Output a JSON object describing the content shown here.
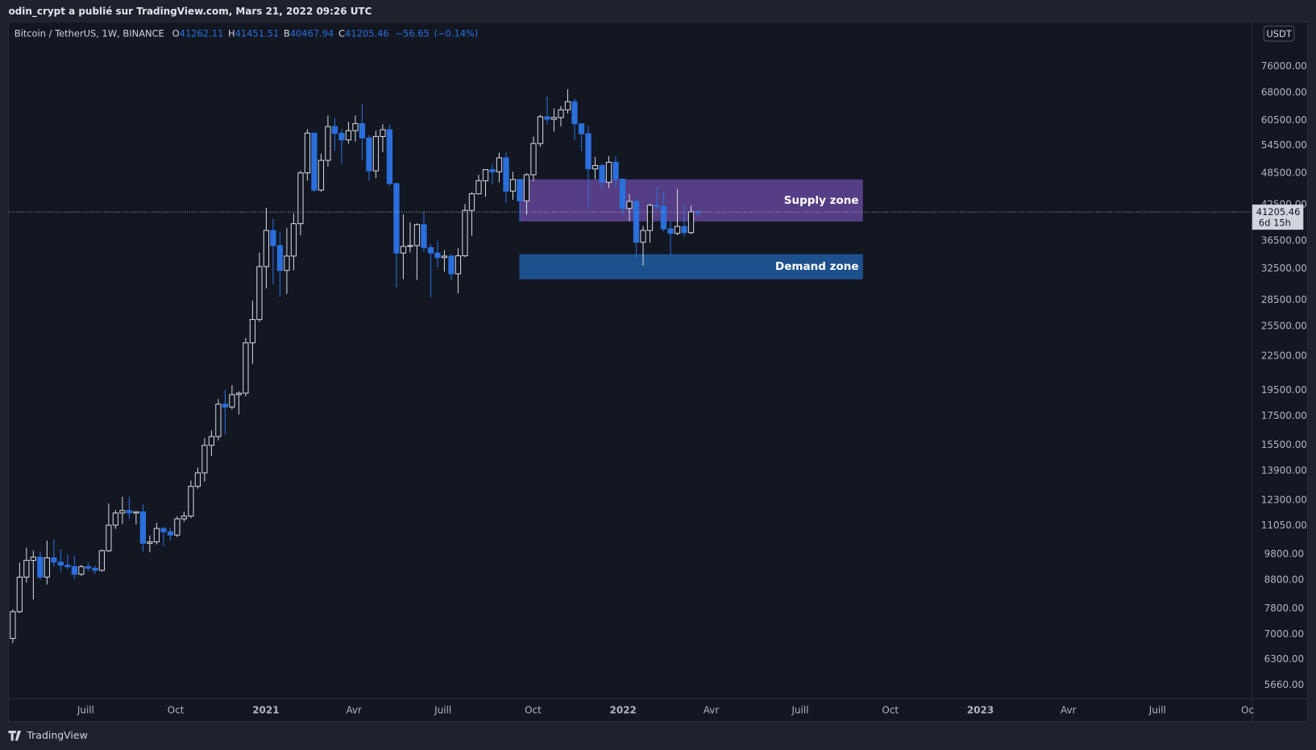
{
  "header": {
    "text": "odin_crypt a publié sur TradingView.com, Mars 21, 2022 09:26 UTC"
  },
  "chart_data": {
    "type": "candlestick",
    "title": "Bitcoin / TetherUS, 1W, BINANCE",
    "legend_labels": {
      "open": "O",
      "high": "H",
      "low": "B",
      "close": "C"
    },
    "change": {
      "value": -56.65,
      "label": "−56.65"
    },
    "change_pct": {
      "value": -0.14,
      "label": "(−0.14%)"
    },
    "currency": "USDT",
    "countdown": "6d 15h",
    "up_color": "#d1d4dc",
    "down_color": "#2a6fdb",
    "log_scale": true,
    "grid": false,
    "x": [
      "2020-04-20",
      "2020-04-27",
      "2020-05-04",
      "2020-05-11",
      "2020-05-18",
      "2020-05-25",
      "2020-06-01",
      "2020-06-08",
      "2020-06-15",
      "2020-06-22",
      "2020-06-29",
      "2020-07-06",
      "2020-07-13",
      "2020-07-20",
      "2020-07-27",
      "2020-08-03",
      "2020-08-10",
      "2020-08-17",
      "2020-08-24",
      "2020-08-31",
      "2020-09-07",
      "2020-09-14",
      "2020-09-21",
      "2020-09-28",
      "2020-10-05",
      "2020-10-12",
      "2020-10-19",
      "2020-10-26",
      "2020-11-02",
      "2020-11-09",
      "2020-11-16",
      "2020-11-23",
      "2020-11-30",
      "2020-12-07",
      "2020-12-14",
      "2020-12-21",
      "2020-12-28",
      "2021-01-04",
      "2021-01-11",
      "2021-01-18",
      "2021-01-25",
      "2021-02-01",
      "2021-02-08",
      "2021-02-15",
      "2021-02-22",
      "2021-03-01",
      "2021-03-08",
      "2021-03-15",
      "2021-03-22",
      "2021-03-29",
      "2021-04-05",
      "2021-04-12",
      "2021-04-19",
      "2021-04-26",
      "2021-05-03",
      "2021-05-10",
      "2021-05-17",
      "2021-05-24",
      "2021-05-31",
      "2021-06-07",
      "2021-06-14",
      "2021-06-21",
      "2021-06-28",
      "2021-07-05",
      "2021-07-12",
      "2021-07-19",
      "2021-07-26",
      "2021-08-02",
      "2021-08-09",
      "2021-08-16",
      "2021-08-23",
      "2021-08-30",
      "2021-09-06",
      "2021-09-13",
      "2021-09-20",
      "2021-09-27",
      "2021-10-04",
      "2021-10-11",
      "2021-10-18",
      "2021-10-25",
      "2021-11-01",
      "2021-11-08",
      "2021-11-15",
      "2021-11-22",
      "2021-11-29",
      "2021-12-06",
      "2021-12-13",
      "2021-12-20",
      "2021-12-27",
      "2022-01-03",
      "2022-01-10",
      "2022-01-17",
      "2022-01-24",
      "2022-01-31",
      "2022-02-07",
      "2022-02-14",
      "2022-02-21",
      "2022-02-28",
      "2022-03-07",
      "2022-03-14",
      "2022-03-21"
    ],
    "open": [
      6880,
      7700,
      8900,
      9550,
      9680,
      8900,
      9650,
      9480,
      9360,
      9300,
      9010,
      9300,
      9240,
      9160,
      9940,
      11070,
      11650,
      11770,
      11650,
      11710,
      10260,
      10320,
      10920,
      10770,
      10620,
      11370,
      11500,
      13030,
      13790,
      15480,
      16060,
      18400,
      18180,
      19150,
      19270,
      23800,
      26250,
      32780,
      38150,
      35800,
      32250,
      34260,
      39250,
      48580,
      57400,
      45200,
      51200,
      59000,
      57350,
      55800,
      58000,
      59750,
      56250,
      49000,
      56600,
      58240,
      46450,
      34700,
      35680,
      35800,
      39100,
      35500,
      34700,
      34050,
      34250,
      31800,
      34300,
      41500,
      44500,
      47000,
      49250,
      48800,
      51750,
      45000,
      47250,
      43200,
      48200,
      54950,
      61500,
      60850,
      61300,
      63300,
      65500,
      59700,
      57270,
      49400,
      50100,
      46700,
      50800,
      47300,
      41850,
      43100,
      36300,
      38150,
      42400,
      42200,
      38400,
      37700,
      38800,
      37800,
      41262.11
    ],
    "high": [
      7770,
      9460,
      10070,
      9950,
      9900,
      10380,
      10430,
      10000,
      9800,
      9750,
      9370,
      9460,
      9350,
      10000,
      12120,
      11800,
      12470,
      12470,
      11700,
      12080,
      10600,
      11180,
      10990,
      10950,
      11490,
      11720,
      13350,
      14090,
      15960,
      16480,
      18800,
      19500,
      19920,
      19420,
      24300,
      28400,
      34780,
      41950,
      40100,
      37850,
      38530,
      40950,
      49000,
      58350,
      57500,
      52650,
      61800,
      61200,
      58400,
      60200,
      61800,
      64850,
      57000,
      58000,
      59600,
      59500,
      46600,
      40800,
      39500,
      39300,
      41300,
      36000,
      36600,
      35100,
      34600,
      35400,
      42600,
      44800,
      48200,
      49300,
      50500,
      52900,
      52950,
      48800,
      47300,
      48500,
      56600,
      62000,
      67000,
      63700,
      64300,
      69000,
      66400,
      59800,
      59200,
      51950,
      50500,
      52100,
      52100,
      47550,
      44450,
      43500,
      38900,
      42700,
      45850,
      44750,
      39800,
      45400,
      42600,
      42300,
      41451.51
    ],
    "low": [
      6750,
      7650,
      8700,
      8100,
      8800,
      8630,
      9300,
      9100,
      9200,
      8830,
      8950,
      9130,
      9020,
      9100,
      9900,
      10900,
      11130,
      11370,
      11100,
      9900,
      9880,
      10210,
      10140,
      10380,
      10530,
      11230,
      11400,
      12900,
      13290,
      14800,
      15800,
      16200,
      18000,
      17620,
      19000,
      21800,
      26000,
      29900,
      30420,
      28850,
      29240,
      32300,
      37400,
      47000,
      44900,
      44900,
      49900,
      53250,
      50400,
      54900,
      55400,
      51300,
      47000,
      47500,
      53000,
      46000,
      30000,
      31100,
      34800,
      31000,
      34800,
      28800,
      32700,
      32100,
      31000,
      29300,
      34100,
      37300,
      44400,
      43950,
      46300,
      46700,
      42800,
      43400,
      39600,
      40750,
      46900,
      54250,
      59500,
      57800,
      59000,
      62300,
      55600,
      53250,
      42000,
      47300,
      45500,
      45600,
      45700,
      40600,
      39650,
      34000,
      32900,
      36250,
      41650,
      38000,
      34300,
      37400,
      37150,
      37550,
      40467.94
    ],
    "close": [
      7700,
      8900,
      9550,
      9680,
      8900,
      9650,
      9480,
      9360,
      9300,
      9010,
      9300,
      9240,
      9160,
      9940,
      11070,
      11650,
      11770,
      11650,
      11710,
      10260,
      10320,
      10920,
      10770,
      10620,
      11370,
      11500,
      13030,
      13790,
      15480,
      16060,
      18400,
      18180,
      19150,
      19270,
      23800,
      26250,
      32780,
      38150,
      35800,
      32250,
      34260,
      39250,
      48580,
      57400,
      45200,
      51200,
      59000,
      57350,
      55800,
      58000,
      59750,
      56250,
      49000,
      56600,
      58240,
      46450,
      34700,
      35680,
      35800,
      39100,
      35500,
      34700,
      34050,
      34250,
      31800,
      34300,
      41500,
      44500,
      47000,
      49250,
      48800,
      51750,
      45000,
      47250,
      43200,
      48200,
      54950,
      61500,
      60850,
      61300,
      63300,
      65500,
      59700,
      57270,
      49400,
      50100,
      46700,
      50800,
      47300,
      41850,
      43100,
      36300,
      38150,
      42400,
      42200,
      38400,
      37700,
      38800,
      37800,
      41262.11,
      41205.46
    ],
    "xlim": [
      "2020-04-13",
      "2023-10-04"
    ],
    "xticks": [
      {
        "value": "2020-07-01",
        "label": "Juill"
      },
      {
        "value": "2020-10-01",
        "label": "Oct"
      },
      {
        "value": "2021-01-01",
        "label": "2021"
      },
      {
        "value": "2021-04-01",
        "label": "Avr"
      },
      {
        "value": "2021-07-01",
        "label": "Juill"
      },
      {
        "value": "2021-10-01",
        "label": "Oct"
      },
      {
        "value": "2022-01-01",
        "label": "2022"
      },
      {
        "value": "2022-04-01",
        "label": "Avr"
      },
      {
        "value": "2022-07-01",
        "label": "Juill"
      },
      {
        "value": "2022-10-01",
        "label": "Oct"
      },
      {
        "value": "2023-01-01",
        "label": "2023"
      },
      {
        "value": "2023-04-01",
        "label": "Avr"
      },
      {
        "value": "2023-07-01",
        "label": "Juill"
      },
      {
        "value": "2023-10-01",
        "label": "Oc"
      }
    ],
    "ylim": [
      5340,
      91600
    ],
    "yticks": [
      {
        "value": 5660,
        "label": "5660.00"
      },
      {
        "value": 6300,
        "label": "6300.00"
      },
      {
        "value": 7000,
        "label": "7000.00"
      },
      {
        "value": 7800,
        "label": "7800.00"
      },
      {
        "value": 8800,
        "label": "8800.00"
      },
      {
        "value": 9800,
        "label": "9800.00"
      },
      {
        "value": 11050,
        "label": "11050.00"
      },
      {
        "value": 12300,
        "label": "12300.00"
      },
      {
        "value": 13900,
        "label": "13900.00"
      },
      {
        "value": 15500,
        "label": "15500.00"
      },
      {
        "value": 17500,
        "label": "17500.00"
      },
      {
        "value": 19500,
        "label": "19500.00"
      },
      {
        "value": 22500,
        "label": "22500.00"
      },
      {
        "value": 25500,
        "label": "25500.00"
      },
      {
        "value": 28500,
        "label": "28500.00"
      },
      {
        "value": 32500,
        "label": "32500.00"
      },
      {
        "value": 36500,
        "label": "36500.00"
      },
      {
        "value": 42500,
        "label": "42500.00"
      },
      {
        "value": 48500,
        "label": "48500.00"
      },
      {
        "value": 54500,
        "label": "54500.00"
      },
      {
        "value": 60500,
        "label": "60500.00"
      },
      {
        "value": 68000,
        "label": "68000.00"
      },
      {
        "value": 76000,
        "label": "76000.00"
      }
    ],
    "zones": [
      {
        "label": "Supply zone",
        "from": "2021-09-17",
        "to": "2022-09-03",
        "top": 47270,
        "bottom": 39620,
        "color": "rgba(126,87,194,0.62)"
      },
      {
        "label": "Demand zone",
        "from": "2021-09-17",
        "to": "2022-09-03",
        "top": 34540,
        "bottom": 31080,
        "color": "rgba(33,102,178,0.75)"
      }
    ]
  },
  "footer": {
    "brand": "TradingView"
  }
}
